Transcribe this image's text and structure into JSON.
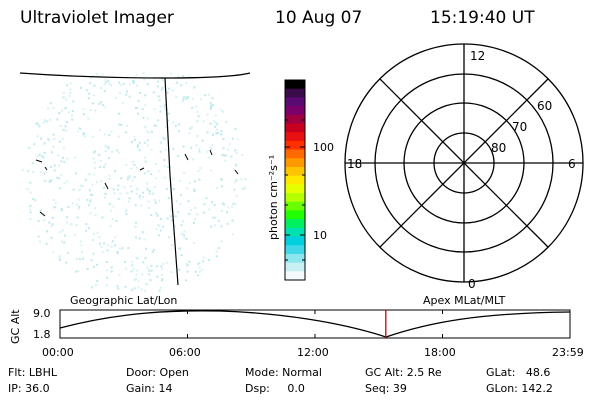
{
  "header": {
    "title": "Ultraviolet Imager",
    "date": "10 Aug 07",
    "time": "15:19:40 UT"
  },
  "colorbar": {
    "unit_label": "photon cm⁻²s⁻¹",
    "tick_labels": [
      "100",
      "10"
    ],
    "colors": [
      "#000000",
      "#3a0a4a",
      "#5a0a70",
      "#7a006a",
      "#a00040",
      "#c80020",
      "#e81010",
      "#ff3000",
      "#ff6a00",
      "#ff9900",
      "#ffc400",
      "#ffe800",
      "#e6ff00",
      "#b4ff00",
      "#6aff00",
      "#22ff00",
      "#00f060",
      "#00e0b0",
      "#00d0e0",
      "#40d8e8",
      "#8ce6ee",
      "#c6f0f4",
      "#f2fafb"
    ]
  },
  "polar_plot": {
    "mlt_labels": {
      "top": "12",
      "left": "18",
      "right": "6",
      "bottom": "0"
    },
    "lat_labels": [
      "60",
      "70",
      "80"
    ]
  },
  "timeline": {
    "left_title": "Geographic Lat/Lon",
    "right_title": "Apex MLat/MLT",
    "y_axis_label": "GC Alt",
    "y_tick_top": "9.0",
    "y_tick_bottom": "1.8",
    "x_ticks": [
      "00:00",
      "06:00",
      "12:00",
      "18:00",
      "23:59"
    ],
    "current_time_hours": 15.33,
    "marker_color": "#cc0000"
  },
  "status": {
    "flt": "Flt: LBHL",
    "ip": "IP: 36.0",
    "door": "Door: Open",
    "gain": "Gain: 14",
    "mode": "Mode: Normal",
    "dsp": "Dsp:     0.0",
    "gc_alt": "GC Alt: 2.5 Re",
    "seq": "Seq: 39",
    "glat": "GLat:   48.6",
    "glon": "GLon: 142.2"
  }
}
